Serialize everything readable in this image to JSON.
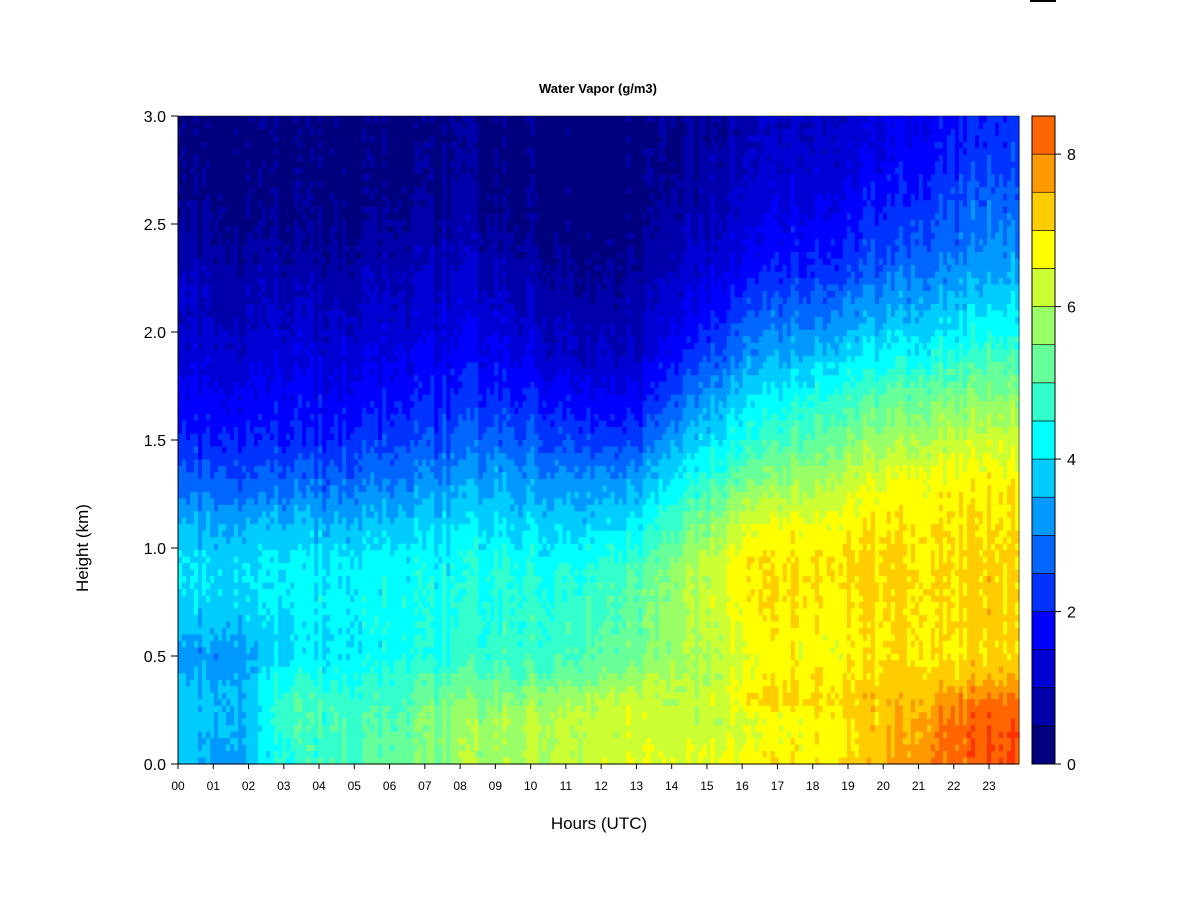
{
  "chart_data": {
    "type": "heatmap",
    "title": "Water Vapor (g/m3)",
    "xlabel": "Hours (UTC)",
    "ylabel": "Height (km)",
    "x_tick_labels": [
      "00",
      "01",
      "02",
      "03",
      "04",
      "05",
      "06",
      "07",
      "08",
      "09",
      "10",
      "11",
      "12",
      "13",
      "14",
      "15",
      "16",
      "17",
      "18",
      "19",
      "20",
      "21",
      "22",
      "23"
    ],
    "x_ticks": [
      0,
      1,
      2,
      3,
      4,
      5,
      6,
      7,
      8,
      9,
      10,
      11,
      12,
      13,
      14,
      15,
      16,
      17,
      18,
      19,
      20,
      21,
      22,
      23
    ],
    "xlim": [
      0,
      23.85
    ],
    "y_tick_labels": [
      "0.0",
      "0.5",
      "1.0",
      "1.5",
      "2.0",
      "2.5",
      "3.0"
    ],
    "y_ticks": [
      0,
      0.5,
      1.0,
      1.5,
      2.0,
      2.5,
      3.0
    ],
    "ylim": [
      0,
      3.0
    ],
    "colorbar": {
      "min": 0,
      "max": 8.5,
      "step": 0.5,
      "tick_values": [
        0,
        2,
        4,
        6,
        8
      ],
      "tick_labels": [
        "0",
        "2",
        "4",
        "6",
        "8"
      ],
      "colors": [
        "#00007F",
        "#0000AA",
        "#0000D4",
        "#0000FF",
        "#0033FF",
        "#0066FF",
        "#0099FF",
        "#00CCFF",
        "#00FFFF",
        "#33FFCC",
        "#66FF99",
        "#99FF66",
        "#CCFF33",
        "#FFFF00",
        "#FFCC00",
        "#FF9900",
        "#FF6600",
        "#FF3300",
        "#FF0000",
        "#D40000",
        "#AA0000",
        "#7F0000"
      ]
    },
    "grid": false,
    "profile_heights_km": [
      0.0,
      0.1,
      0.2,
      0.3,
      0.4,
      0.5,
      0.7,
      0.9,
      1.1,
      1.3,
      1.5,
      1.7,
      1.9,
      2.1,
      2.3,
      2.5,
      2.7,
      2.9,
      3.0
    ],
    "profiles": [
      {
        "hour": 0.0,
        "values": [
          3.8,
          3.8,
          3.7,
          3.6,
          3.5,
          3.2,
          3.7,
          4.0,
          3.6,
          2.7,
          2.0,
          1.6,
          1.2,
          1.0,
          0.9,
          0.5,
          0.3,
          0.3,
          0.3
        ]
      },
      {
        "hour": 1.0,
        "values": [
          3.4,
          3.4,
          3.6,
          3.6,
          3.4,
          3.2,
          3.8,
          4.0,
          3.5,
          2.7,
          2.0,
          1.6,
          1.2,
          0.9,
          0.8,
          0.5,
          0.3,
          0.3,
          0.3
        ]
      },
      {
        "hour": 2.0,
        "values": [
          3.5,
          3.5,
          3.5,
          3.6,
          3.5,
          3.4,
          3.8,
          4.0,
          3.5,
          2.7,
          2.0,
          1.6,
          1.2,
          0.9,
          0.7,
          0.4,
          0.3,
          0.3,
          0.3
        ]
      },
      {
        "hour": 3.0,
        "values": [
          4.6,
          4.6,
          4.8,
          4.8,
          4.4,
          3.8,
          4.0,
          4.1,
          3.6,
          2.7,
          2.0,
          1.7,
          1.3,
          1.0,
          0.7,
          0.4,
          0.3,
          0.3,
          0.3
        ]
      },
      {
        "hour": 4.5,
        "values": [
          4.9,
          4.9,
          4.9,
          4.8,
          4.5,
          4.1,
          4.2,
          4.2,
          3.6,
          2.8,
          2.1,
          1.7,
          1.3,
          1.0,
          0.6,
          0.4,
          0.3,
          0.3,
          0.3
        ]
      },
      {
        "hour": 6.0,
        "values": [
          5.1,
          5.1,
          5.0,
          4.8,
          4.6,
          4.3,
          4.3,
          4.3,
          3.7,
          2.9,
          2.3,
          1.8,
          1.4,
          1.1,
          0.8,
          0.5,
          0.3,
          0.3,
          0.3
        ]
      },
      {
        "hour": 7.0,
        "values": [
          5.4,
          5.4,
          5.5,
          5.2,
          4.8,
          4.4,
          4.4,
          4.3,
          3.8,
          3.1,
          2.4,
          1.9,
          1.5,
          1.2,
          0.9,
          0.6,
          0.4,
          0.3,
          0.3
        ]
      },
      {
        "hour": 8.0,
        "values": [
          5.8,
          5.8,
          5.7,
          5.4,
          5.0,
          4.6,
          4.5,
          4.4,
          3.9,
          3.3,
          2.6,
          2.1,
          1.6,
          1.3,
          1.0,
          0.7,
          0.5,
          0.4,
          0.4
        ]
      },
      {
        "hour": 9.0,
        "values": [
          5.8,
          5.8,
          5.7,
          5.5,
          5.1,
          4.7,
          4.6,
          4.5,
          4.0,
          3.4,
          2.7,
          2.1,
          1.6,
          1.2,
          0.8,
          0.5,
          0.3,
          0.3,
          0.3
        ]
      },
      {
        "hour": 10.0,
        "values": [
          6.0,
          6.0,
          6.1,
          5.7,
          5.2,
          4.8,
          4.7,
          4.5,
          3.9,
          3.3,
          2.6,
          2.0,
          1.4,
          1.0,
          0.7,
          0.4,
          0.3,
          0.3,
          0.3
        ]
      },
      {
        "hour": 11.0,
        "values": [
          6.3,
          6.2,
          6.2,
          6.0,
          5.4,
          5.0,
          4.8,
          4.6,
          3.9,
          3.3,
          2.5,
          1.8,
          1.2,
          0.9,
          0.6,
          0.3,
          0.3,
          0.3,
          0.3
        ]
      },
      {
        "hour": 12.0,
        "values": [
          6.4,
          6.3,
          6.3,
          6.1,
          5.6,
          5.2,
          5.0,
          4.8,
          4.0,
          3.3,
          2.4,
          1.7,
          1.1,
          0.8,
          0.5,
          0.3,
          0.3,
          0.3,
          0.3
        ]
      },
      {
        "hour": 13.0,
        "values": [
          6.4,
          6.3,
          6.3,
          6.2,
          5.8,
          5.3,
          5.2,
          5.0,
          4.1,
          3.3,
          2.4,
          1.6,
          1.0,
          0.8,
          0.5,
          0.3,
          0.3,
          0.3,
          0.3
        ]
      },
      {
        "hour": 14.0,
        "values": [
          6.4,
          6.2,
          6.1,
          6.0,
          5.9,
          5.6,
          5.7,
          5.5,
          4.8,
          4.0,
          3.2,
          2.4,
          1.7,
          1.2,
          0.9,
          0.6,
          0.4,
          0.3,
          0.3
        ]
      },
      {
        "hour": 15.0,
        "values": [
          6.6,
          6.4,
          6.2,
          6.3,
          6.1,
          6.0,
          6.2,
          6.2,
          5.6,
          4.8,
          4.0,
          3.2,
          2.4,
          1.8,
          1.3,
          1.0,
          0.8,
          0.6,
          0.6
        ]
      },
      {
        "hour": 16.0,
        "values": [
          6.8,
          6.5,
          6.3,
          6.9,
          6.5,
          6.4,
          6.7,
          6.9,
          6.4,
          5.3,
          4.5,
          3.8,
          3.0,
          2.3,
          1.6,
          1.3,
          1.0,
          0.8,
          0.8
        ]
      },
      {
        "hour": 17.0,
        "values": [
          6.9,
          6.6,
          6.5,
          7.1,
          6.8,
          6.6,
          6.9,
          7.0,
          6.5,
          5.6,
          4.8,
          4.1,
          3.3,
          2.6,
          1.9,
          1.5,
          1.2,
          1.0,
          1.0
        ]
      },
      {
        "hour": 18.0,
        "values": [
          7.0,
          6.8,
          6.8,
          7.1,
          7.0,
          6.7,
          6.9,
          7.1,
          6.7,
          5.9,
          5.2,
          4.5,
          3.6,
          2.8,
          2.1,
          1.7,
          1.3,
          1.1,
          1.1
        ]
      },
      {
        "hour": 19.0,
        "values": [
          7.1,
          7.0,
          7.0,
          7.2,
          7.0,
          6.8,
          6.9,
          7.1,
          6.8,
          6.3,
          5.5,
          4.8,
          3.9,
          3.1,
          2.3,
          1.9,
          1.5,
          1.2,
          1.2
        ]
      },
      {
        "hour": 20.0,
        "values": [
          7.4,
          7.3,
          7.3,
          7.3,
          7.1,
          6.9,
          7.0,
          7.1,
          6.9,
          6.5,
          5.7,
          5.0,
          4.1,
          3.3,
          2.6,
          2.1,
          1.7,
          1.4,
          1.4
        ]
      },
      {
        "hour": 21.0,
        "values": [
          7.8,
          7.7,
          7.6,
          7.4,
          7.2,
          7.0,
          7.1,
          7.1,
          7.0,
          6.7,
          6.0,
          5.3,
          4.3,
          3.5,
          2.9,
          2.4,
          2.0,
          1.7,
          1.7
        ]
      },
      {
        "hour": 22.0,
        "values": [
          8.3,
          8.3,
          8.2,
          7.9,
          7.3,
          7.0,
          7.1,
          7.1,
          7.0,
          6.8,
          6.2,
          5.5,
          4.6,
          3.8,
          3.1,
          2.7,
          2.3,
          2.0,
          2.0
        ]
      },
      {
        "hour": 23.0,
        "values": [
          8.5,
          8.5,
          8.4,
          8.1,
          7.5,
          7.1,
          7.2,
          7.2,
          7.1,
          6.9,
          6.3,
          5.6,
          4.8,
          4.0,
          3.3,
          2.9,
          2.5,
          2.2,
          2.2
        ]
      },
      {
        "hour": 23.85,
        "values": [
          8.6,
          8.6,
          8.5,
          8.2,
          7.6,
          7.2,
          7.2,
          7.2,
          7.1,
          6.9,
          6.4,
          5.7,
          4.9,
          4.1,
          3.4,
          3.0,
          2.6,
          2.3,
          2.3
        ]
      }
    ]
  }
}
